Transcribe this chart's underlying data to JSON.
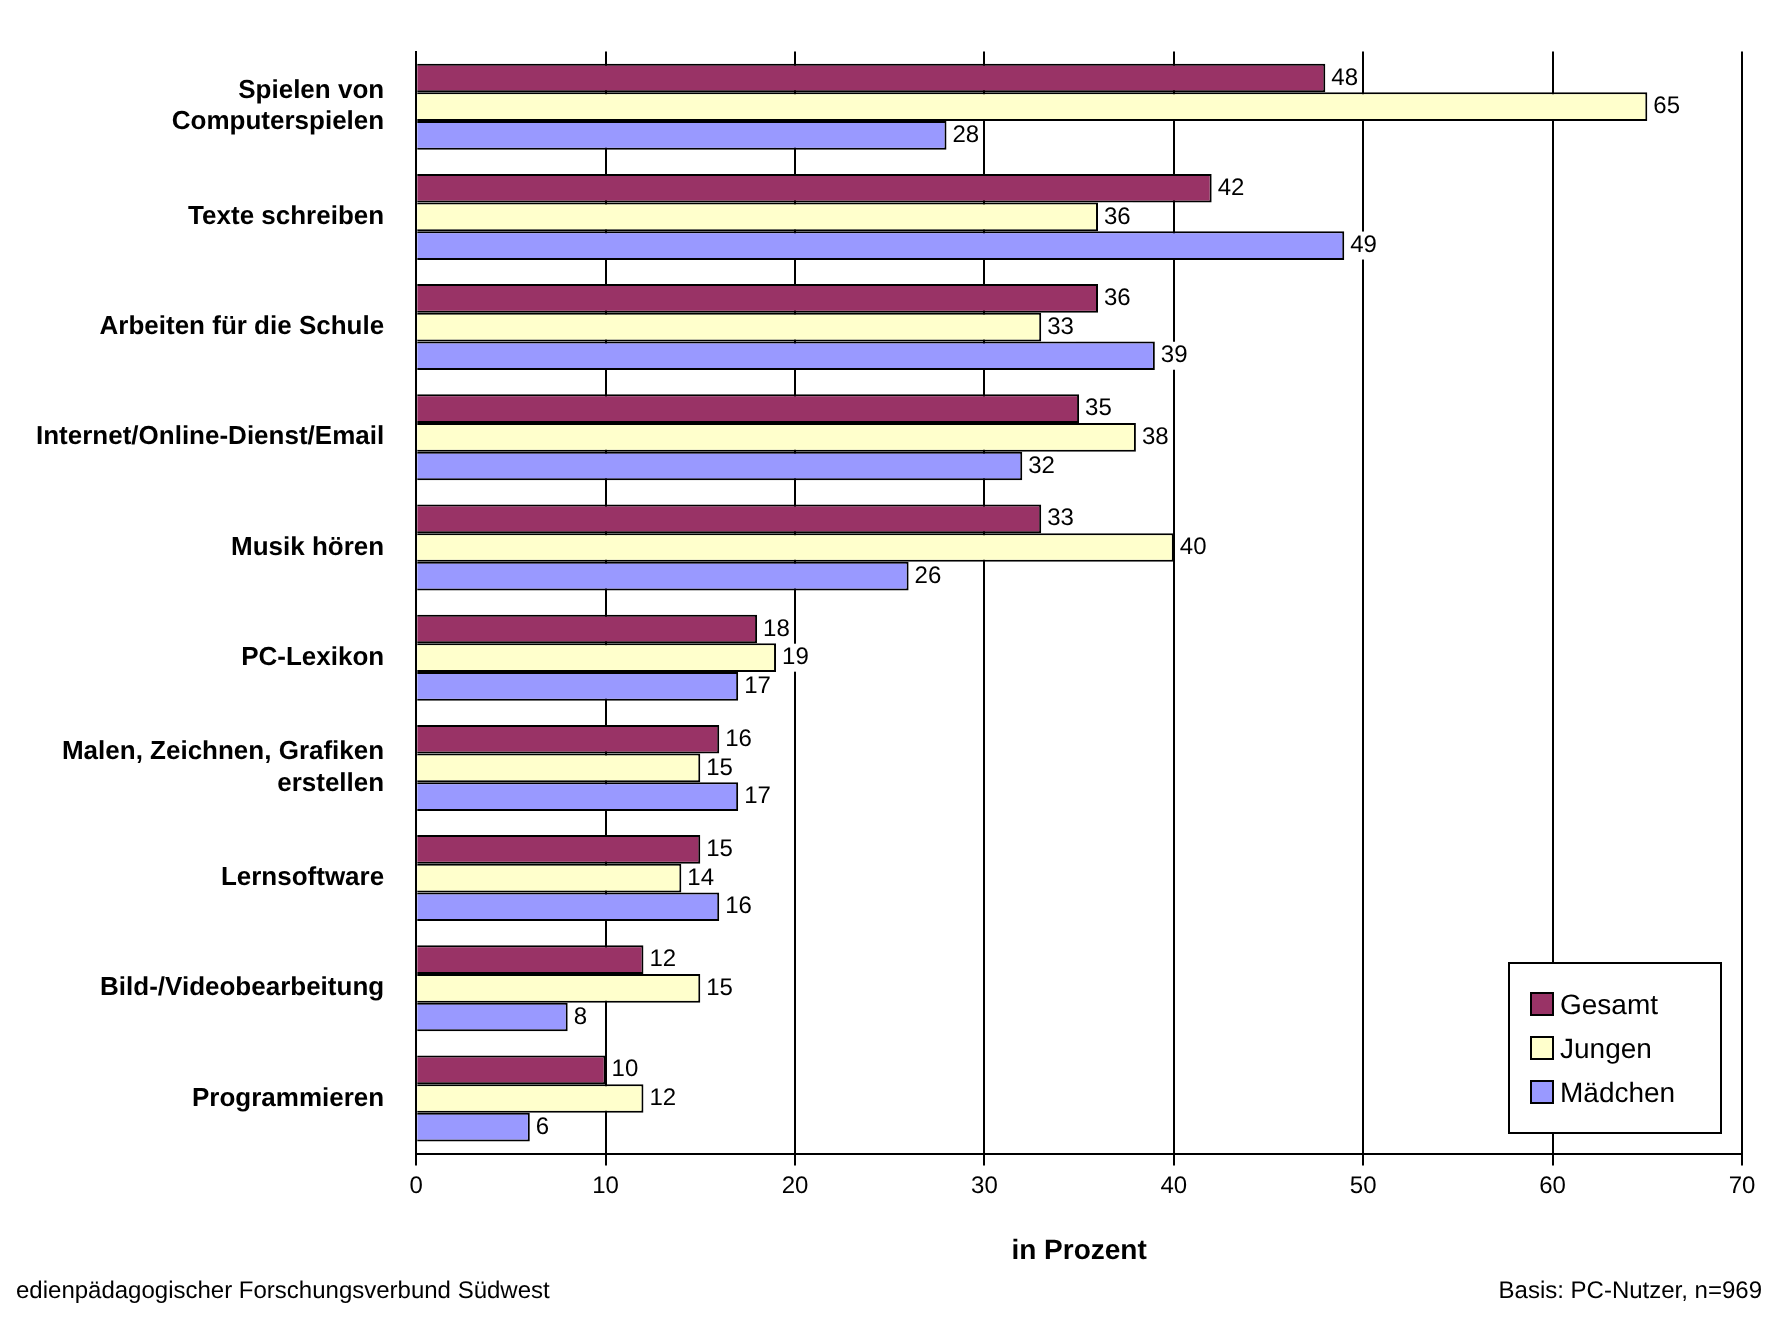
{
  "chart_data": {
    "type": "bar",
    "orientation": "horizontal",
    "xlabel": "in Prozent",
    "categories": [
      "Spielen von Computerspielen",
      "Texte schreiben",
      "Arbeiten für die Schule",
      "Internet/Online-Dienst/Email",
      "Musik hören",
      "PC-Lexikon",
      "Malen, Zeichnen, Grafiken erstellen",
      "Lernsoftware",
      "Bild-/Videobearbeitung",
      "Programmieren"
    ],
    "series": [
      {
        "name": "Gesamt",
        "color": "#993366",
        "values": [
          48,
          42,
          36,
          35,
          33,
          18,
          16,
          15,
          12,
          10
        ]
      },
      {
        "name": "Jungen",
        "color": "#ffffcc",
        "values": [
          65,
          36,
          33,
          38,
          40,
          19,
          15,
          14,
          15,
          12
        ]
      },
      {
        "name": "Mädchen",
        "color": "#9999ff",
        "values": [
          28,
          49,
          39,
          32,
          26,
          17,
          17,
          16,
          8,
          6
        ]
      }
    ],
    "xlim": [
      0,
      70
    ],
    "xticks": [
      0,
      10,
      20,
      30,
      40,
      50,
      60,
      70
    ],
    "grid": "x",
    "legend": "bottom right",
    "data_labels": true,
    "annotations": [
      "edienpädagogischer Forschungsverbund Südwest",
      "Basis: PC-Nutzer, n=969"
    ]
  }
}
